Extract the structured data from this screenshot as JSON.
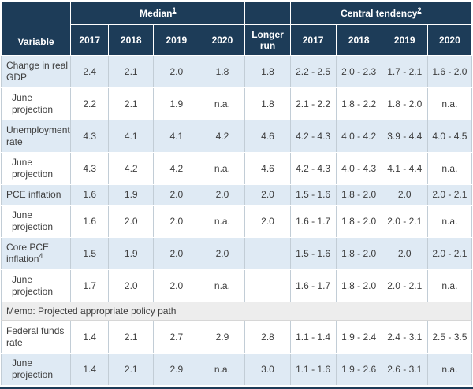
{
  "colors": {
    "header_bg": "#1d3c58",
    "header_text": "#ffffff",
    "shaded_row_bg": "#dfeaf4",
    "memo_bg": "#ededed",
    "grid": "#c2cdd6",
    "text": "#3d3d3d"
  },
  "table": {
    "header": {
      "variable_label": "Variable",
      "median": {
        "label": "Median",
        "footnote": "1",
        "years": [
          "2017",
          "2018",
          "2019",
          "2020"
        ]
      },
      "longer_run_label": "Longer run",
      "central": {
        "label": "Central tendency",
        "footnote": "2",
        "years": [
          "2017",
          "2018",
          "2019",
          "2020"
        ]
      }
    },
    "rows": [
      {
        "label": "Change in real GDP",
        "shaded": true,
        "median": [
          "2.4",
          "2.1",
          "2.0",
          "1.8",
          "1.8"
        ],
        "central_tendency": [
          "2.2 - 2.5",
          "2.0 - 2.3",
          "1.7 - 2.1",
          "1.6 - 2.0"
        ]
      },
      {
        "label": "June projection",
        "indent": true,
        "median": [
          "2.2",
          "2.1",
          "1.9",
          "n.a.",
          "1.8"
        ],
        "central_tendency": [
          "2.1 - 2.2",
          "1.8 - 2.2",
          "1.8 - 2.0",
          "n.a."
        ]
      },
      {
        "label": "Unemployment rate",
        "shaded": true,
        "median": [
          "4.3",
          "4.1",
          "4.1",
          "4.2",
          "4.6"
        ],
        "central_tendency": [
          "4.2 - 4.3",
          "4.0 - 4.2",
          "3.9 - 4.4",
          "4.0 - 4.5"
        ]
      },
      {
        "label": "June projection",
        "indent": true,
        "median": [
          "4.3",
          "4.2",
          "4.2",
          "n.a.",
          "4.6"
        ],
        "central_tendency": [
          "4.2 - 4.3",
          "4.0 - 4.3",
          "4.1 - 4.4",
          "n.a."
        ]
      },
      {
        "label": "PCE inflation",
        "shaded": true,
        "median": [
          "1.6",
          "1.9",
          "2.0",
          "2.0",
          "2.0"
        ],
        "central_tendency": [
          "1.5 - 1.6",
          "1.8 - 2.0",
          "2.0",
          "2.0 - 2.1"
        ]
      },
      {
        "label": "June projection",
        "indent": true,
        "median": [
          "1.6",
          "2.0",
          "2.0",
          "n.a.",
          "2.0"
        ],
        "central_tendency": [
          "1.6 - 1.7",
          "1.8 - 2.0",
          "2.0 - 2.1",
          "n.a."
        ]
      },
      {
        "label": "Core PCE inflation",
        "label_footnote": "4",
        "shaded": true,
        "median": [
          "1.5",
          "1.9",
          "2.0",
          "2.0",
          ""
        ],
        "central_tendency": [
          "1.5 - 1.6",
          "1.8 - 2.0",
          "2.0",
          "2.0 - 2.1"
        ]
      },
      {
        "label": "June projection",
        "indent": true,
        "median": [
          "1.7",
          "2.0",
          "2.0",
          "n.a.",
          ""
        ],
        "central_tendency": [
          "1.6 - 1.7",
          "1.8 - 2.0",
          "2.0 - 2.1",
          "n.a."
        ]
      },
      {
        "type": "memo",
        "label": "Memo: Projected appropriate policy path"
      },
      {
        "label": "Federal funds rate",
        "median": [
          "1.4",
          "2.1",
          "2.7",
          "2.9",
          "2.8"
        ],
        "central_tendency": [
          "1.1 - 1.4",
          "1.9 - 2.4",
          "2.4 - 3.1",
          "2.5 - 3.5"
        ]
      },
      {
        "label": "June projection",
        "indent": true,
        "shaded": true,
        "median": [
          "1.4",
          "2.1",
          "2.9",
          "n.a.",
          "3.0"
        ],
        "central_tendency": [
          "1.1 - 1.6",
          "1.9 - 2.6",
          "2.6 - 3.1",
          "n.a."
        ]
      }
    ]
  },
  "chart_data": {
    "type": "table",
    "title": "",
    "columns": [
      "Variable",
      "Median 2017",
      "Median 2018",
      "Median 2019",
      "Median 2020",
      "Median Longer run",
      "Central tendency 2017",
      "Central tendency 2018",
      "Central tendency 2019",
      "Central tendency 2020"
    ],
    "rows": [
      [
        "Change in real GDP",
        "2.4",
        "2.1",
        "2.0",
        "1.8",
        "1.8",
        "2.2 - 2.5",
        "2.0 - 2.3",
        "1.7 - 2.1",
        "1.6 - 2.0"
      ],
      [
        "June projection",
        "2.2",
        "2.1",
        "1.9",
        "n.a.",
        "1.8",
        "2.1 - 2.2",
        "1.8 - 2.2",
        "1.8 - 2.0",
        "n.a."
      ],
      [
        "Unemployment rate",
        "4.3",
        "4.1",
        "4.1",
        "4.2",
        "4.6",
        "4.2 - 4.3",
        "4.0 - 4.2",
        "3.9 - 4.4",
        "4.0 - 4.5"
      ],
      [
        "June projection",
        "4.3",
        "4.2",
        "4.2",
        "n.a.",
        "4.6",
        "4.2 - 4.3",
        "4.0 - 4.3",
        "4.1 - 4.4",
        "n.a."
      ],
      [
        "PCE inflation",
        "1.6",
        "1.9",
        "2.0",
        "2.0",
        "2.0",
        "1.5 - 1.6",
        "1.8 - 2.0",
        "2.0",
        "2.0 - 2.1"
      ],
      [
        "June projection",
        "1.6",
        "2.0",
        "2.0",
        "n.a.",
        "2.0",
        "1.6 - 1.7",
        "1.8 - 2.0",
        "2.0 - 2.1",
        "n.a."
      ],
      [
        "Core PCE inflation [4]",
        "1.5",
        "1.9",
        "2.0",
        "2.0",
        "",
        "1.5 - 1.6",
        "1.8 - 2.0",
        "2.0",
        "2.0 - 2.1"
      ],
      [
        "June projection",
        "1.7",
        "2.0",
        "2.0",
        "n.a.",
        "",
        "1.6 - 1.7",
        "1.8 - 2.0",
        "2.0 - 2.1",
        "n.a."
      ],
      [
        "Memo: Projected appropriate policy path",
        "",
        "",
        "",
        "",
        "",
        "",
        "",
        "",
        ""
      ],
      [
        "Federal funds rate",
        "1.4",
        "2.1",
        "2.7",
        "2.9",
        "2.8",
        "1.1 - 1.4",
        "1.9 - 2.4",
        "2.4 - 3.1",
        "2.5 - 3.5"
      ],
      [
        "June projection",
        "1.4",
        "2.1",
        "2.9",
        "n.a.",
        "3.0",
        "1.1 - 1.6",
        "1.9 - 2.6",
        "2.6 - 3.1",
        "n.a."
      ]
    ],
    "footnote_markers": [
      "1",
      "2",
      "4"
    ]
  }
}
